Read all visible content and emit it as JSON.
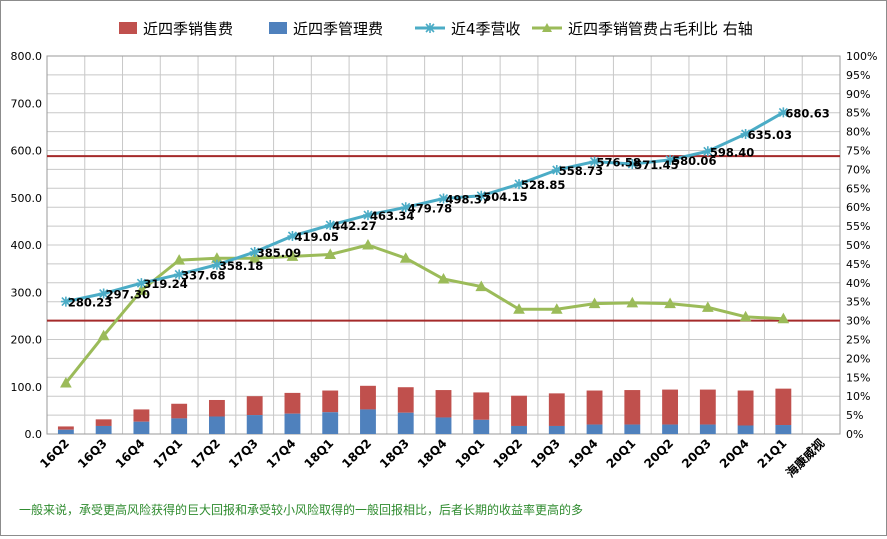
{
  "chart_data": {
    "type": "bar",
    "categories": [
      "16Q2",
      "16Q3",
      "16Q4",
      "17Q1",
      "17Q2",
      "17Q3",
      "17Q4",
      "18Q1",
      "18Q2",
      "18Q3",
      "18Q4",
      "19Q1",
      "19Q2",
      "19Q3",
      "19Q4",
      "20Q1",
      "20Q2",
      "20Q3",
      "20Q4",
      "21Q1",
      "海康威视"
    ],
    "series": [
      {
        "name": "近四季销售费",
        "type": "bar",
        "color": "#c0504d",
        "values": [
          16,
          31,
          52,
          64,
          72,
          80,
          87,
          92,
          102,
          99,
          93,
          88,
          81,
          86,
          92,
          93,
          94,
          94,
          92,
          96,
          null
        ]
      },
      {
        "name": "近四季管理费",
        "type": "bar",
        "color": "#4f81bd",
        "values": [
          9,
          17,
          26,
          33,
          37,
          40,
          43,
          46,
          52,
          45,
          35,
          30,
          17,
          17,
          20,
          20,
          20,
          20,
          18,
          19,
          null
        ]
      },
      {
        "name": "近4季营收",
        "type": "line",
        "color": "#4bacc6",
        "marker": "star",
        "values": [
          280.23,
          297.3,
          319.24,
          337.68,
          358.18,
          385.09,
          419.05,
          442.27,
          463.34,
          479.78,
          498.37,
          504.15,
          528.85,
          558.73,
          576.58,
          571.45,
          580.06,
          598.4,
          635.03,
          680.63,
          null
        ]
      },
      {
        "name": "近四季销管费占毛利比 右轴",
        "type": "line",
        "color": "#9bbb59",
        "marker": "triangle",
        "axis": "right",
        "values": [
          13.5,
          26,
          38,
          46,
          46.5,
          46.5,
          47,
          47.5,
          50,
          46.5,
          41,
          39,
          33,
          33,
          34.5,
          34.7,
          34.5,
          33.5,
          31,
          30.5,
          null
        ]
      }
    ],
    "data_labels": [
      "280.23",
      "297.30",
      "319.24",
      "337.68",
      "358.18",
      "385.09",
      "419.05",
      "442.27",
      "463.34",
      "479.78",
      "498.37",
      "504.15",
      "528.85",
      "558.73",
      "576.58",
      "571.45",
      "580.06",
      "598.40",
      "635.03",
      "680.63"
    ],
    "ylim": [
      0,
      800
    ],
    "yticks": [
      "0.0",
      "100.0",
      "200.0",
      "300.0",
      "400.0",
      "500.0",
      "600.0",
      "700.0",
      "800.0"
    ],
    "y2lim": [
      0,
      100
    ],
    "y2ticks": [
      "0%",
      "5%",
      "10%",
      "15%",
      "20%",
      "25%",
      "30%",
      "35%",
      "40%",
      "45%",
      "50%",
      "55%",
      "60%",
      "65%",
      "70%",
      "75%",
      "80%",
      "85%",
      "90%",
      "95%",
      "100%"
    ],
    "reference_lines": [
      {
        "axis": "right",
        "value": 73.5,
        "color": "#a52a2a"
      },
      {
        "axis": "right",
        "value": 30,
        "color": "#a52a2a"
      }
    ],
    "grid": true,
    "legend_position": "top"
  },
  "footnote": "一般来说，承受更高风险获得的巨大回报和承受较小风险取得的一般回报相比，后者长期的收益率更高的多"
}
